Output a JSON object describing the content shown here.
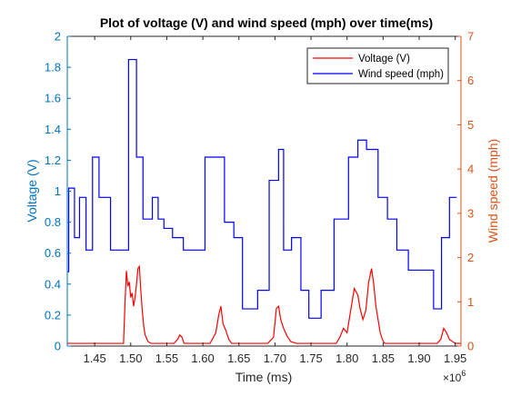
{
  "chart_data": {
    "type": "line",
    "title": "Plot of voltage (V) and wind speed (mph) over time(ms)",
    "xlabel": "Time (ms)",
    "x_exponent_label": "×10",
    "x_exponent_power": "6",
    "xlim": [
      1.412,
      1.958
    ],
    "xticks": [
      1.45,
      1.5,
      1.55,
      1.6,
      1.65,
      1.7,
      1.75,
      1.8,
      1.85,
      1.9,
      1.95
    ],
    "left_axis": {
      "label": "Voltage (V)",
      "color": "#0072BD",
      "ylim": [
        0,
        2
      ],
      "ticks": [
        0,
        0.2,
        0.4,
        0.6,
        0.8,
        1,
        1.2,
        1.4,
        1.6,
        1.8,
        2
      ]
    },
    "right_axis": {
      "label": "Wind speed (mph)",
      "color": "#D95319",
      "ylim": [
        0,
        7
      ],
      "ticks": [
        0,
        1,
        2,
        3,
        4,
        5,
        6,
        7
      ]
    },
    "legend": {
      "position": "top-right",
      "entries": [
        "Voltage (V)",
        "Wind speed (mph)"
      ]
    },
    "grid": false,
    "series": [
      {
        "name": "Wind speed (mph)",
        "axis": "left",
        "color": "#0000FF",
        "style": "stairs",
        "x": [
          1.412,
          1.414,
          1.422,
          1.429,
          1.438,
          1.447,
          1.456,
          1.472,
          1.497,
          1.508,
          1.517,
          1.53,
          1.538,
          1.546,
          1.558,
          1.573,
          1.603,
          1.63,
          1.643,
          1.655,
          1.676,
          1.692,
          1.705,
          1.712,
          1.723,
          1.736,
          1.747,
          1.764,
          1.782,
          1.802,
          1.815,
          1.827,
          1.843,
          1.856,
          1.869,
          1.885,
          1.901,
          1.92,
          1.931,
          1.942,
          1.952
        ],
        "y": [
          0.48,
          1.02,
          0.7,
          0.96,
          0.62,
          1.22,
          0.96,
          0.62,
          1.85,
          1.22,
          0.82,
          0.96,
          0.82,
          0.76,
          0.7,
          0.62,
          1.22,
          0.8,
          0.7,
          0.24,
          0.36,
          1.07,
          1.27,
          0.62,
          0.7,
          0.36,
          0.18,
          0.36,
          0.82,
          1.22,
          1.33,
          1.27,
          0.96,
          0.82,
          0.62,
          0.49,
          0.49,
          0.24,
          0.7,
          0.96,
          0.96
        ]
      },
      {
        "name": "Voltage (V)",
        "axis": "right",
        "color": "#FF0000",
        "style": "line",
        "x": [
          1.412,
          1.48,
          1.49,
          1.492,
          1.494,
          1.496,
          1.498,
          1.5,
          1.502,
          1.504,
          1.506,
          1.508,
          1.51,
          1.512,
          1.514,
          1.516,
          1.518,
          1.52,
          1.524,
          1.528,
          1.535,
          1.56,
          1.565,
          1.568,
          1.571,
          1.574,
          1.61,
          1.618,
          1.622,
          1.625,
          1.628,
          1.632,
          1.636,
          1.64,
          1.645,
          1.69,
          1.698,
          1.702,
          1.705,
          1.708,
          1.712,
          1.717,
          1.722,
          1.73,
          1.785,
          1.79,
          1.795,
          1.8,
          1.805,
          1.81,
          1.815,
          1.818,
          1.822,
          1.826,
          1.83,
          1.834,
          1.837,
          1.84,
          1.843,
          1.846,
          1.849,
          1.852,
          1.856,
          1.862,
          1.925,
          1.93,
          1.934,
          1.938,
          1.942,
          1.95,
          1.958
        ],
        "y": [
          0.06,
          0.06,
          0.06,
          0.95,
          1.7,
          1.35,
          1.45,
          1.1,
          1.2,
          0.9,
          1.1,
          1.4,
          1.75,
          1.8,
          1.25,
          0.8,
          0.45,
          0.25,
          0.1,
          0.06,
          0.06,
          0.06,
          0.15,
          0.25,
          0.2,
          0.06,
          0.06,
          0.3,
          0.7,
          0.9,
          0.5,
          0.35,
          0.15,
          0.06,
          0.06,
          0.06,
          0.2,
          0.85,
          0.9,
          0.6,
          0.4,
          0.22,
          0.1,
          0.06,
          0.06,
          0.2,
          0.4,
          0.3,
          0.8,
          1.3,
          1.15,
          0.85,
          0.6,
          0.8,
          1.45,
          1.75,
          1.4,
          0.9,
          0.6,
          0.3,
          0.15,
          0.06,
          0.06,
          0.06,
          0.06,
          0.15,
          0.4,
          0.3,
          0.15,
          0.06,
          0.06
        ]
      }
    ]
  }
}
